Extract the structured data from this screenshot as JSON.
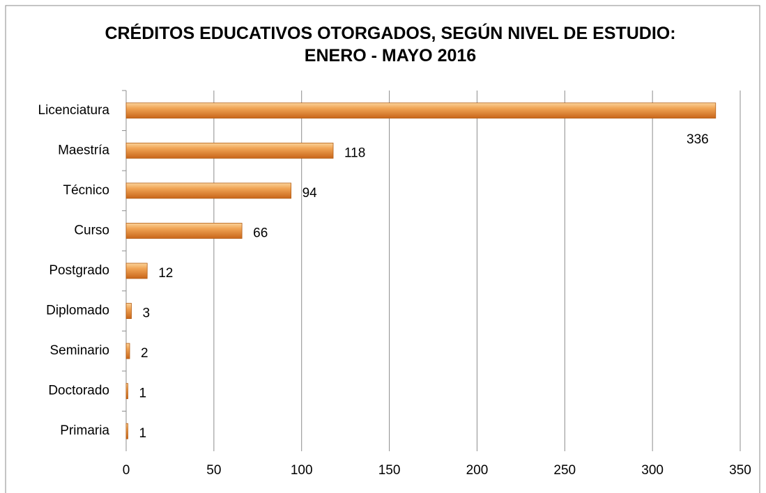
{
  "chart_data": {
    "type": "hbar",
    "title": "CRÉDITOS EDUCATIVOS OTORGADOS, SEGÚN NIVEL DE ESTUDIO: ENERO - MAYO 2016",
    "categories": [
      "Licenciatura",
      "Maestría",
      "Técnico",
      "Curso",
      "Postgrado",
      "Diplomado",
      "Seminario",
      "Doctorado",
      "Primaria"
    ],
    "values": [
      336,
      118,
      94,
      66,
      12,
      3,
      2,
      1,
      1
    ],
    "color": "#e8892e",
    "xlim": [
      0,
      350
    ],
    "xticks": [
      0,
      50,
      100,
      150,
      200,
      250,
      300,
      350
    ],
    "grid": true
  }
}
